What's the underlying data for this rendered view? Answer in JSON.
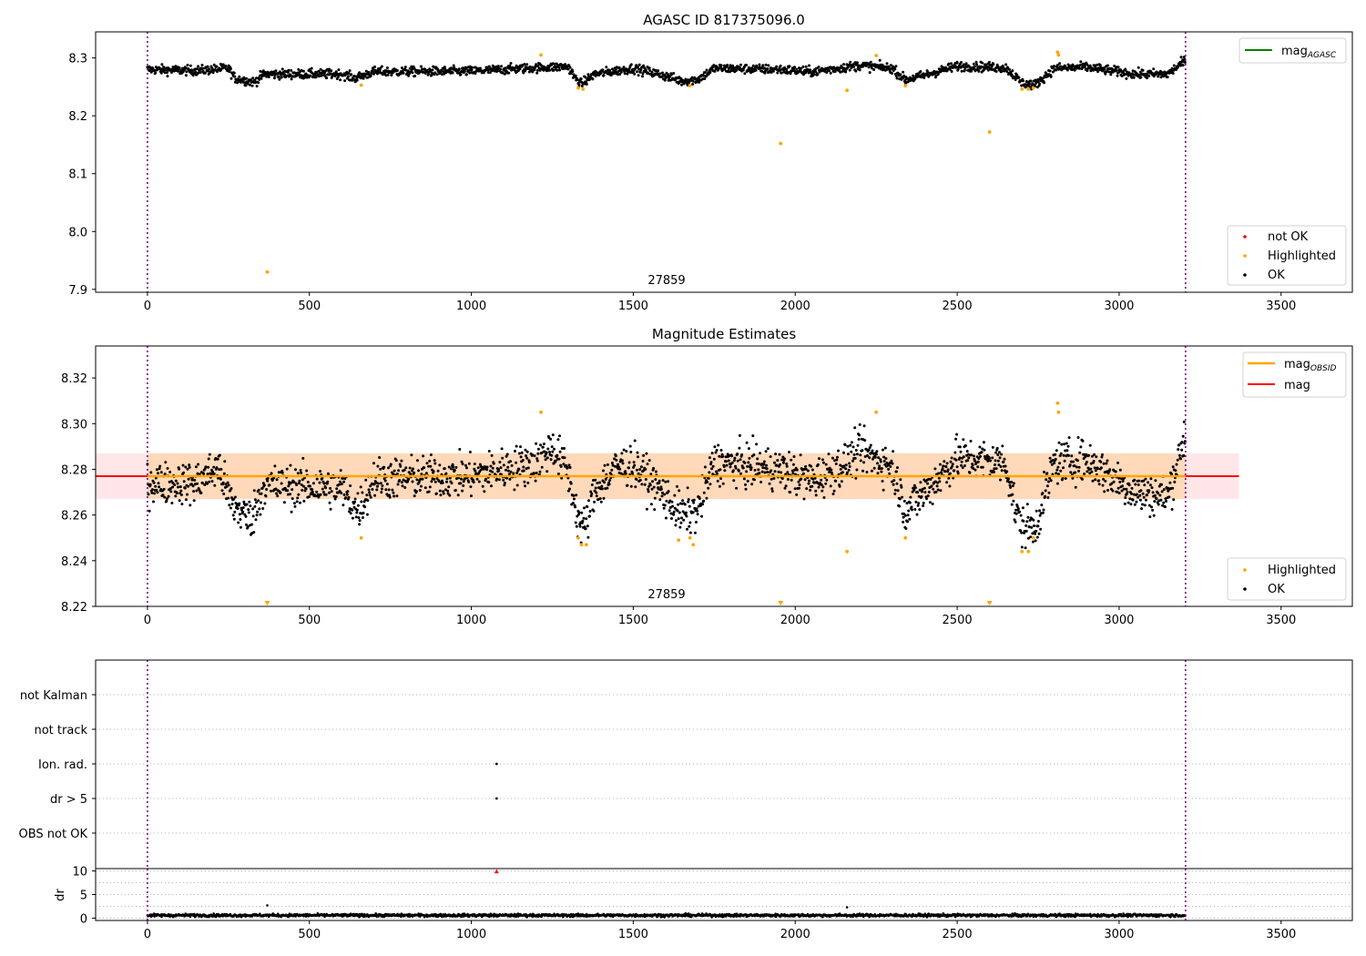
{
  "chart_data": [
    {
      "id": "agasc",
      "type": "scatter",
      "title": "AGASC ID 817375096.0",
      "xlim": [
        -160,
        3720
      ],
      "ylim": [
        7.895,
        8.345
      ],
      "xticks": [
        0,
        500,
        1000,
        1500,
        2000,
        2500,
        3000,
        3500
      ],
      "yticks": [
        7.9,
        8.0,
        8.1,
        8.2,
        8.3
      ],
      "ytick_labels": [
        "7.9",
        "8.0",
        "8.1",
        "8.2",
        "8.3"
      ],
      "annotation": {
        "text": "27859",
        "x": 1600,
        "y": 7.91
      },
      "vlines": [
        0,
        3205
      ],
      "line_legend": [
        {
          "name": "mag",
          "sub": "AGASC",
          "color": "#008000"
        }
      ],
      "marker_legend": [
        {
          "name": "not OK",
          "color": "#ff0000"
        },
        {
          "name": "Highlighted",
          "color": "#ffa500"
        },
        {
          "name": "OK",
          "color": "#000000"
        }
      ],
      "ok_trend": [
        [
          0,
          8.28
        ],
        [
          150,
          8.278
        ],
        [
          250,
          8.282
        ],
        [
          270,
          8.265
        ],
        [
          330,
          8.258
        ],
        [
          360,
          8.272
        ],
        [
          600,
          8.272
        ],
        [
          640,
          8.265
        ],
        [
          700,
          8.276
        ],
        [
          1000,
          8.277
        ],
        [
          1200,
          8.283
        ],
        [
          1300,
          8.285
        ],
        [
          1320,
          8.265
        ],
        [
          1340,
          8.255
        ],
        [
          1380,
          8.272
        ],
        [
          1500,
          8.282
        ],
        [
          1580,
          8.272
        ],
        [
          1650,
          8.26
        ],
        [
          1700,
          8.263
        ],
        [
          1750,
          8.282
        ],
        [
          1950,
          8.28
        ],
        [
          2050,
          8.276
        ],
        [
          2200,
          8.287
        ],
        [
          2300,
          8.282
        ],
        [
          2340,
          8.262
        ],
        [
          2400,
          8.27
        ],
        [
          2500,
          8.286
        ],
        [
          2650,
          8.283
        ],
        [
          2700,
          8.257
        ],
        [
          2740,
          8.253
        ],
        [
          2800,
          8.282
        ],
        [
          2900,
          8.284
        ],
        [
          3050,
          8.272
        ],
        [
          3150,
          8.272
        ],
        [
          3205,
          8.296
        ]
      ],
      "ok_noise": 0.008,
      "highlighted_points": [
        [
          370,
          7.93
        ],
        [
          660,
          8.253
        ],
        [
          1215,
          8.305
        ],
        [
          1330,
          8.248
        ],
        [
          1345,
          8.246
        ],
        [
          1675,
          8.252
        ],
        [
          1955,
          8.152
        ],
        [
          2160,
          8.244
        ],
        [
          2250,
          8.304
        ],
        [
          2340,
          8.252
        ],
        [
          2600,
          8.172
        ],
        [
          2700,
          8.246
        ],
        [
          2720,
          8.246
        ],
        [
          2735,
          8.248
        ],
        [
          2810,
          8.31
        ],
        [
          2813,
          8.305
        ]
      ]
    },
    {
      "id": "estimates",
      "type": "scatter",
      "title": "Magnitude Estimates",
      "xlim": [
        -160,
        3720
      ],
      "ylim": [
        8.22,
        8.334
      ],
      "xticks": [
        0,
        500,
        1000,
        1500,
        2000,
        2500,
        3000,
        3500
      ],
      "yticks": [
        8.22,
        8.24,
        8.26,
        8.28,
        8.3,
        8.32
      ],
      "ytick_labels": [
        "8.22",
        "8.24",
        "8.26",
        "8.28",
        "8.30",
        "8.32"
      ],
      "annotation": {
        "text": "27859",
        "x": 1600,
        "y": 8.224
      },
      "vlines": [
        0,
        3205
      ],
      "line_legend": [
        {
          "name": "mag",
          "sub": "OBSID",
          "color": "#ffa500"
        },
        {
          "name": "mag",
          "sub": "",
          "color": "#ff0000"
        }
      ],
      "marker_legend": [
        {
          "name": "Highlighted",
          "color": "#ffa500"
        },
        {
          "name": "OK",
          "color": "#000000"
        }
      ],
      "mag": 8.277,
      "mag_band": [
        8.267,
        8.287
      ],
      "band_xlim": [
        -160,
        3370
      ],
      "obsid_band_xlim": [
        0,
        3205
      ],
      "ok_trend": [
        [
          0,
          8.274
        ],
        [
          150,
          8.274
        ],
        [
          220,
          8.281
        ],
        [
          260,
          8.265
        ],
        [
          320,
          8.258
        ],
        [
          360,
          8.273
        ],
        [
          600,
          8.272
        ],
        [
          650,
          8.262
        ],
        [
          700,
          8.276
        ],
        [
          1000,
          8.277
        ],
        [
          1200,
          8.283
        ],
        [
          1250,
          8.29
        ],
        [
          1300,
          8.278
        ],
        [
          1330,
          8.258
        ],
        [
          1350,
          8.254
        ],
        [
          1380,
          8.27
        ],
        [
          1450,
          8.281
        ],
        [
          1500,
          8.282
        ],
        [
          1580,
          8.271
        ],
        [
          1650,
          8.26
        ],
        [
          1700,
          8.262
        ],
        [
          1750,
          8.283
        ],
        [
          1950,
          8.28
        ],
        [
          2050,
          8.275
        ],
        [
          2150,
          8.282
        ],
        [
          2200,
          8.288
        ],
        [
          2300,
          8.281
        ],
        [
          2340,
          8.262
        ],
        [
          2400,
          8.27
        ],
        [
          2500,
          8.285
        ],
        [
          2650,
          8.283
        ],
        [
          2680,
          8.262
        ],
        [
          2700,
          8.255
        ],
        [
          2740,
          8.254
        ],
        [
          2800,
          8.283
        ],
        [
          2900,
          8.284
        ],
        [
          3050,
          8.27
        ],
        [
          3150,
          8.268
        ],
        [
          3205,
          8.296
        ]
      ],
      "ok_noise": 0.009,
      "highlighted_points": [
        [
          660,
          8.25
        ],
        [
          1215,
          8.305
        ],
        [
          1330,
          8.25
        ],
        [
          1340,
          8.247
        ],
        [
          1355,
          8.247
        ],
        [
          1640,
          8.249
        ],
        [
          1675,
          8.25
        ],
        [
          1685,
          8.247
        ],
        [
          2160,
          8.244
        ],
        [
          2250,
          8.305
        ],
        [
          2340,
          8.25
        ],
        [
          2700,
          8.244
        ],
        [
          2720,
          8.244
        ],
        [
          2735,
          8.25
        ],
        [
          2810,
          8.309
        ],
        [
          2813,
          8.305
        ]
      ],
      "offscale_markers": [
        370,
        1955,
        2600
      ]
    },
    {
      "id": "flags",
      "type": "scatter",
      "xlim": [
        -160,
        3720
      ],
      "categories": [
        "not Kalman",
        "not track",
        "Ion. rad.",
        "dr > 5",
        "OBS not OK"
      ],
      "vlines": [
        0,
        3205
      ],
      "points": [
        {
          "category": "Ion. rad.",
          "x": 1078
        },
        {
          "category": "dr > 5",
          "x": 1078
        }
      ]
    },
    {
      "id": "dr",
      "type": "scatter",
      "ylabel": "dr",
      "xlim": [
        -160,
        3720
      ],
      "ylim": [
        -0.5,
        10.5
      ],
      "xticks": [
        0,
        500,
        1000,
        1500,
        2000,
        2500,
        3000,
        3500
      ],
      "yticks": [
        0,
        5,
        10
      ],
      "ytick_labels": [
        "0",
        "5",
        "10"
      ],
      "vlines": [
        0,
        3205
      ],
      "ok_level": 0.6,
      "ok_noise": 0.25,
      "outlier_points": [
        [
          370,
          2.7
        ],
        [
          2160,
          2.3
        ]
      ],
      "not_ok_points": [
        [
          1078,
          9.9
        ]
      ]
    }
  ]
}
